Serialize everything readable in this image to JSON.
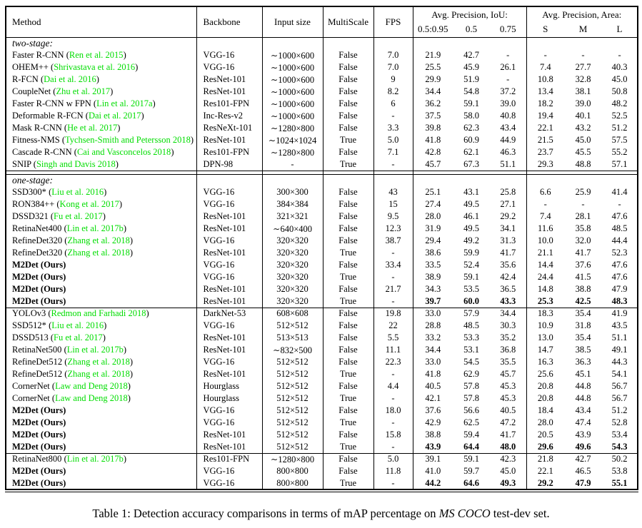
{
  "colors": {
    "citation": "#00dd00",
    "text": "#000000",
    "background": "#ffffff"
  },
  "header": {
    "method": "Method",
    "backbone": "Backbone",
    "input_size": "Input size",
    "multiscale": "MultiScale",
    "fps": "FPS",
    "iou_group": "Avg. Precision, IoU:",
    "iou_cols": [
      "0.5:0.95",
      "0.5",
      "0.75"
    ],
    "area_group": "Avg. Precision, Area:",
    "area_cols": [
      "S",
      "M",
      "L"
    ]
  },
  "sections": [
    {
      "label": "two-stage:",
      "groups": [
        {
          "rows": [
            {
              "method": "Faster R-CNN",
              "cite": "Ren et al. 2015",
              "backbone": "VGG-16",
              "input": "∼1000×600",
              "multiscale": "False",
              "fps": "7.0",
              "values": [
                "21.9",
                "42.7",
                "-",
                "-",
                "-",
                "-"
              ]
            },
            {
              "method": "OHEM++",
              "cite": "Shrivastava et al. 2016",
              "backbone": "VGG-16",
              "input": "∼1000×600",
              "multiscale": "False",
              "fps": "7.0",
              "values": [
                "25.5",
                "45.9",
                "26.1",
                "7.4",
                "27.7",
                "40.3"
              ]
            },
            {
              "method": "R-FCN",
              "cite": "Dai et al. 2016",
              "backbone": "ResNet-101",
              "input": "∼1000×600",
              "multiscale": "False",
              "fps": "9",
              "values": [
                "29.9",
                "51.9",
                "-",
                "10.8",
                "32.8",
                "45.0"
              ]
            },
            {
              "method": "CoupleNet",
              "cite": "Zhu et al. 2017",
              "backbone": "ResNet-101",
              "input": "∼1000×600",
              "multiscale": "False",
              "fps": "8.2",
              "values": [
                "34.4",
                "54.8",
                "37.2",
                "13.4",
                "38.1",
                "50.8"
              ]
            },
            {
              "method": "Faster R-CNN w FPN",
              "cite": "Lin et al. 2017a",
              "backbone": "Res101-FPN",
              "input": "∼1000×600",
              "multiscale": "False",
              "fps": "6",
              "values": [
                "36.2",
                "59.1",
                "39.0",
                "18.2",
                "39.0",
                "48.2"
              ]
            },
            {
              "method": "Deformable R-FCN",
              "cite": "Dai et al. 2017",
              "backbone": "Inc-Res-v2",
              "input": "∼1000×600",
              "multiscale": "False",
              "fps": "-",
              "values": [
                "37.5",
                "58.0",
                "40.8",
                "19.4",
                "40.1",
                "52.5"
              ]
            },
            {
              "method": "Mask R-CNN",
              "cite": "He et al. 2017",
              "backbone": "ResNeXt-101",
              "input": "∼1280×800",
              "multiscale": "False",
              "fps": "3.3",
              "values": [
                "39.8",
                "62.3",
                "43.4",
                "22.1",
                "43.2",
                "51.2"
              ]
            },
            {
              "method": "Fitness-NMS",
              "cite": "Tychsen-Smith and Petersson 2018",
              "backbone": "ResNet-101",
              "input": "∼1024×1024",
              "multiscale": "True",
              "fps": "5.0",
              "values": [
                "41.8",
                "60.9",
                "44.9",
                "21.5",
                "45.0",
                "57.5"
              ]
            },
            {
              "method": "Cascade R-CNN",
              "cite": "Cai and Vasconcelos 2018",
              "backbone": "Res101-FPN",
              "input": "∼1280×800",
              "multiscale": "False",
              "fps": "7.1",
              "values": [
                "42.8",
                "62.1",
                "46.3",
                "23.7",
                "45.5",
                "55.2"
              ]
            },
            {
              "method": "SNIP",
              "cite": "Singh and Davis 2018",
              "backbone": "DPN-98",
              "input": "-",
              "multiscale": "True",
              "fps": "-",
              "values": [
                "45.7",
                "67.3",
                "51.1",
                "29.3",
                "48.8",
                "57.1"
              ]
            }
          ]
        }
      ]
    },
    {
      "label": "one-stage:",
      "groups": [
        {
          "rows": [
            {
              "method": "SSD300*",
              "cite": "Liu et al. 2016",
              "backbone": "VGG-16",
              "input": "300×300",
              "multiscale": "False",
              "fps": "43",
              "values": [
                "25.1",
                "43.1",
                "25.8",
                "6.6",
                "25.9",
                "41.4"
              ]
            },
            {
              "method": "RON384++",
              "cite": "Kong et al. 2017",
              "backbone": "VGG-16",
              "input": "384×384",
              "multiscale": "False",
              "fps": "15",
              "values": [
                "27.4",
                "49.5",
                "27.1",
                "-",
                "-",
                "-"
              ]
            },
            {
              "method": "DSSD321",
              "cite": "Fu et al. 2017",
              "backbone": "ResNet-101",
              "input": "321×321",
              "multiscale": "False",
              "fps": "9.5",
              "values": [
                "28.0",
                "46.1",
                "29.2",
                "7.4",
                "28.1",
                "47.6"
              ]
            },
            {
              "method": "RetinaNet400",
              "cite": "Lin et al. 2017b",
              "backbone": "ResNet-101",
              "input": "∼640×400",
              "multiscale": "False",
              "fps": "12.3",
              "values": [
                "31.9",
                "49.5",
                "34.1",
                "11.6",
                "35.8",
                "48.5"
              ]
            },
            {
              "method": "RefineDet320",
              "cite": "Zhang et al. 2018",
              "backbone": "VGG-16",
              "input": "320×320",
              "multiscale": "False",
              "fps": "38.7",
              "values": [
                "29.4",
                "49.2",
                "31.3",
                "10.0",
                "32.0",
                "44.4"
              ]
            },
            {
              "method": "RefineDet320",
              "cite": "Zhang et al. 2018",
              "backbone": "ResNet-101",
              "input": "320×320",
              "multiscale": "True",
              "fps": "-",
              "values": [
                "38.6",
                "59.9",
                "41.7",
                "21.1",
                "41.7",
                "52.3"
              ]
            },
            {
              "method": "M2Det (Ours)",
              "bold_method": true,
              "backbone": "VGG-16",
              "input": "320×320",
              "multiscale": "False",
              "fps": "33.4",
              "values": [
                "33.5",
                "52.4",
                "35.6",
                "14.4",
                "37.6",
                "47.6"
              ]
            },
            {
              "method": "M2Det (Ours)",
              "bold_method": true,
              "backbone": "VGG-16",
              "input": "320×320",
              "multiscale": "True",
              "fps": "-",
              "values": [
                "38.9",
                "59.1",
                "42.4",
                "24.4",
                "41.5",
                "47.6"
              ]
            },
            {
              "method": "M2Det (Ours)",
              "bold_method": true,
              "backbone": "ResNet-101",
              "input": "320×320",
              "multiscale": "False",
              "fps": "21.7",
              "values": [
                "34.3",
                "53.5",
                "36.5",
                "14.8",
                "38.8",
                "47.9"
              ]
            },
            {
              "method": "M2Det (Ours)",
              "bold_method": true,
              "backbone": "ResNet-101",
              "input": "320×320",
              "multiscale": "True",
              "fps": "-",
              "bold_values": true,
              "values": [
                "39.7",
                "60.0",
                "43.3",
                "25.3",
                "42.5",
                "48.3"
              ]
            }
          ]
        },
        {
          "rows": [
            {
              "method": "YOLOv3",
              "cite": "Redmon and Farhadi 2018",
              "backbone": "DarkNet-53",
              "input": "608×608",
              "multiscale": "False",
              "fps": "19.8",
              "values": [
                "33.0",
                "57.9",
                "34.4",
                "18.3",
                "35.4",
                "41.9"
              ]
            },
            {
              "method": "SSD512*",
              "cite": "Liu et al. 2016",
              "backbone": "VGG-16",
              "input": "512×512",
              "multiscale": "False",
              "fps": "22",
              "values": [
                "28.8",
                "48.5",
                "30.3",
                "10.9",
                "31.8",
                "43.5"
              ]
            },
            {
              "method": "DSSD513",
              "cite": "Fu et al. 2017",
              "backbone": "ResNet-101",
              "input": "513×513",
              "multiscale": "False",
              "fps": "5.5",
              "values": [
                "33.2",
                "53.3",
                "35.2",
                "13.0",
                "35.4",
                "51.1"
              ]
            },
            {
              "method": "RetinaNet500",
              "cite": "Lin et al. 2017b",
              "backbone": "ResNet-101",
              "input": "∼832×500",
              "multiscale": "False",
              "fps": "11.1",
              "values": [
                "34.4",
                "53.1",
                "36.8",
                "14.7",
                "38.5",
                "49.1"
              ]
            },
            {
              "method": "RefineDet512",
              "cite": "Zhang et al. 2018",
              "backbone": "VGG-16",
              "input": "512×512",
              "multiscale": "False",
              "fps": "22.3",
              "values": [
                "33.0",
                "54.5",
                "35.5",
                "16.3",
                "36.3",
                "44.3"
              ]
            },
            {
              "method": "RefineDet512",
              "cite": "Zhang et al. 2018",
              "backbone": "ResNet-101",
              "input": "512×512",
              "multiscale": "True",
              "fps": "-",
              "values": [
                "41.8",
                "62.9",
                "45.7",
                "25.6",
                "45.1",
                "54.1"
              ]
            },
            {
              "method": "CornerNet",
              "cite": "Law and Deng 2018",
              "backbone": "Hourglass",
              "input": "512×512",
              "multiscale": "False",
              "fps": "4.4",
              "values": [
                "40.5",
                "57.8",
                "45.3",
                "20.8",
                "44.8",
                "56.7"
              ]
            },
            {
              "method": "CornerNet",
              "cite": "Law and Deng 2018",
              "backbone": "Hourglass",
              "input": "512×512",
              "multiscale": "True",
              "fps": "-",
              "values": [
                "42.1",
                "57.8",
                "45.3",
                "20.8",
                "44.8",
                "56.7"
              ]
            },
            {
              "method": "M2Det (Ours)",
              "bold_method": true,
              "backbone": "VGG-16",
              "input": "512×512",
              "multiscale": "False",
              "fps": "18.0",
              "values": [
                "37.6",
                "56.6",
                "40.5",
                "18.4",
                "43.4",
                "51.2"
              ]
            },
            {
              "method": "M2Det (Ours)",
              "bold_method": true,
              "backbone": "VGG-16",
              "input": "512×512",
              "multiscale": "True",
              "fps": "-",
              "values": [
                "42.9",
                "62.5",
                "47.2",
                "28.0",
                "47.4",
                "52.8"
              ]
            },
            {
              "method": "M2Det (Ours)",
              "bold_method": true,
              "backbone": "ResNet-101",
              "input": "512×512",
              "multiscale": "False",
              "fps": "15.8",
              "values": [
                "38.8",
                "59.4",
                "41.7",
                "20.5",
                "43.9",
                "53.4"
              ]
            },
            {
              "method": "M2Det (Ours)",
              "bold_method": true,
              "backbone": "ResNet-101",
              "input": "512×512",
              "multiscale": "True",
              "fps": "-",
              "bold_values": true,
              "values": [
                "43.9",
                "64.4",
                "48.0",
                "29.6",
                "49.6",
                "54.3"
              ]
            }
          ]
        },
        {
          "rows": [
            {
              "method": "RetinaNet800",
              "cite": "Lin et al. 2017b",
              "backbone": "Res101-FPN",
              "input": "∼1280×800",
              "multiscale": "False",
              "fps": "5.0",
              "values": [
                "39.1",
                "59.1",
                "42.3",
                "21.8",
                "42.7",
                "50.2"
              ]
            },
            {
              "method": "M2Det (Ours)",
              "bold_method": true,
              "backbone": "VGG-16",
              "input": "800×800",
              "multiscale": "False",
              "fps": "11.8",
              "values": [
                "41.0",
                "59.7",
                "45.0",
                "22.1",
                "46.5",
                "53.8"
              ]
            },
            {
              "method": "M2Det (Ours)",
              "bold_method": true,
              "backbone": "VGG-16",
              "input": "800×800",
              "multiscale": "True",
              "fps": "-",
              "bold_values": true,
              "values": [
                "44.2",
                "64.6",
                "49.3",
                "29.2",
                "47.9",
                "55.1"
              ]
            }
          ]
        }
      ]
    }
  ],
  "caption": {
    "prefix": "Table 1: Detection accuracy comparisons in terms of mAP percentage on ",
    "emph": "MS COCO",
    "suffix": " test-dev set."
  }
}
